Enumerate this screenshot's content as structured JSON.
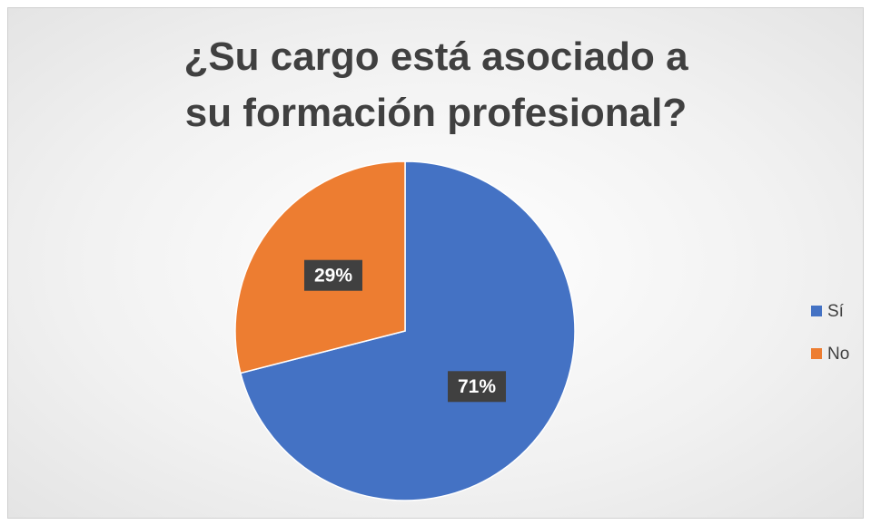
{
  "chart_data": {
    "type": "pie",
    "title": "¿Su cargo está asociado a su formación profesional?",
    "categories": [
      "Sí",
      "No"
    ],
    "values": [
      71,
      29
    ],
    "value_labels": [
      "71%",
      "29%"
    ],
    "colors": [
      "#4472c4",
      "#ed7d31"
    ],
    "legend": "right"
  }
}
